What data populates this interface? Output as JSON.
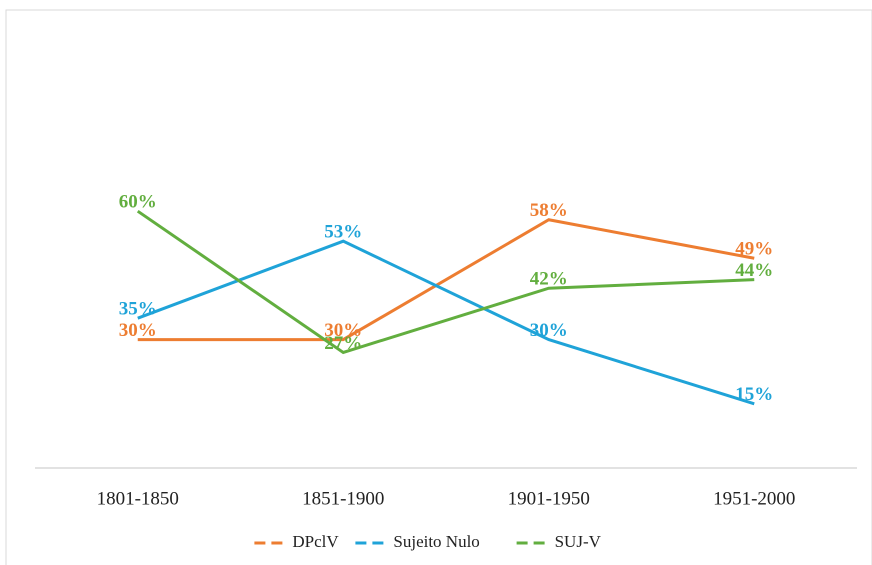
{
  "chart_data": {
    "type": "line",
    "categories": [
      "1801-1850",
      "1851-1900",
      "1901-1950",
      "1951-2000"
    ],
    "series": [
      {
        "name": "DPclV",
        "color": "#ED7D31",
        "values": [
          30,
          30,
          58,
          49
        ],
        "value_labels": [
          "30%",
          "30%",
          "58%",
          "49%"
        ]
      },
      {
        "name": "Sujeito Nulo",
        "color": "#1FA3D8",
        "values": [
          35,
          53,
          30,
          15
        ],
        "value_labels": [
          "35%",
          "53%",
          "30%",
          "15%"
        ]
      },
      {
        "name": "SUJ-V",
        "color": "#62AE3F",
        "values": [
          60,
          27,
          42,
          44
        ],
        "value_labels": [
          "60%",
          "27%",
          "42%",
          "44%"
        ]
      }
    ],
    "ylim": [
      0,
      100
    ],
    "legend": "bottom"
  }
}
